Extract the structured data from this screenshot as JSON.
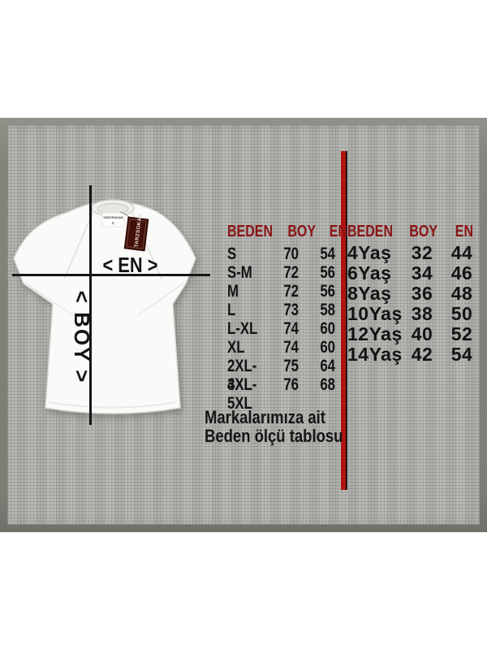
{
  "panel": {
    "bezel_color": "#82827a",
    "surface_color": "#b4b4b1"
  },
  "divider": {
    "red": "#b01212",
    "edge": "#1a1a1a"
  },
  "header_color": "#8a1414",
  "shirt": {
    "neck_label_brand": "TARZSOKAK",
    "neck_label_size": "C",
    "hang_tag_text": "TARZSOKAK",
    "width_marker": "< EN >",
    "height_marker": "< BOY >"
  },
  "adult_table": {
    "headers": [
      "BEDEN",
      "BOY",
      "EN"
    ],
    "rows": [
      [
        "S",
        "70",
        "54"
      ],
      [
        "S-M",
        "72",
        "56"
      ],
      [
        "M",
        "72",
        "56"
      ],
      [
        "L",
        "73",
        "58"
      ],
      [
        "L-XL",
        "74",
        "60"
      ],
      [
        "XL",
        "74",
        "60"
      ],
      [
        "2XL-3XL",
        "75",
        "64"
      ],
      [
        "4XL-5XL",
        "76",
        "68"
      ]
    ]
  },
  "kids_table": {
    "headers": [
      "BEDEN",
      "BOY",
      "EN"
    ],
    "rows": [
      [
        "4Yaş",
        "32",
        "44"
      ],
      [
        "6Yaş",
        "34",
        "46"
      ],
      [
        "8Yaş",
        "36",
        "48"
      ],
      [
        "10Yaş",
        "38",
        "50"
      ],
      [
        "12Yaş",
        "40",
        "52"
      ],
      [
        "14Yaş",
        "42",
        "54"
      ]
    ]
  },
  "caption": {
    "line1": "Markalarımıza ait",
    "line2": "Beden ölçü tablosu"
  }
}
